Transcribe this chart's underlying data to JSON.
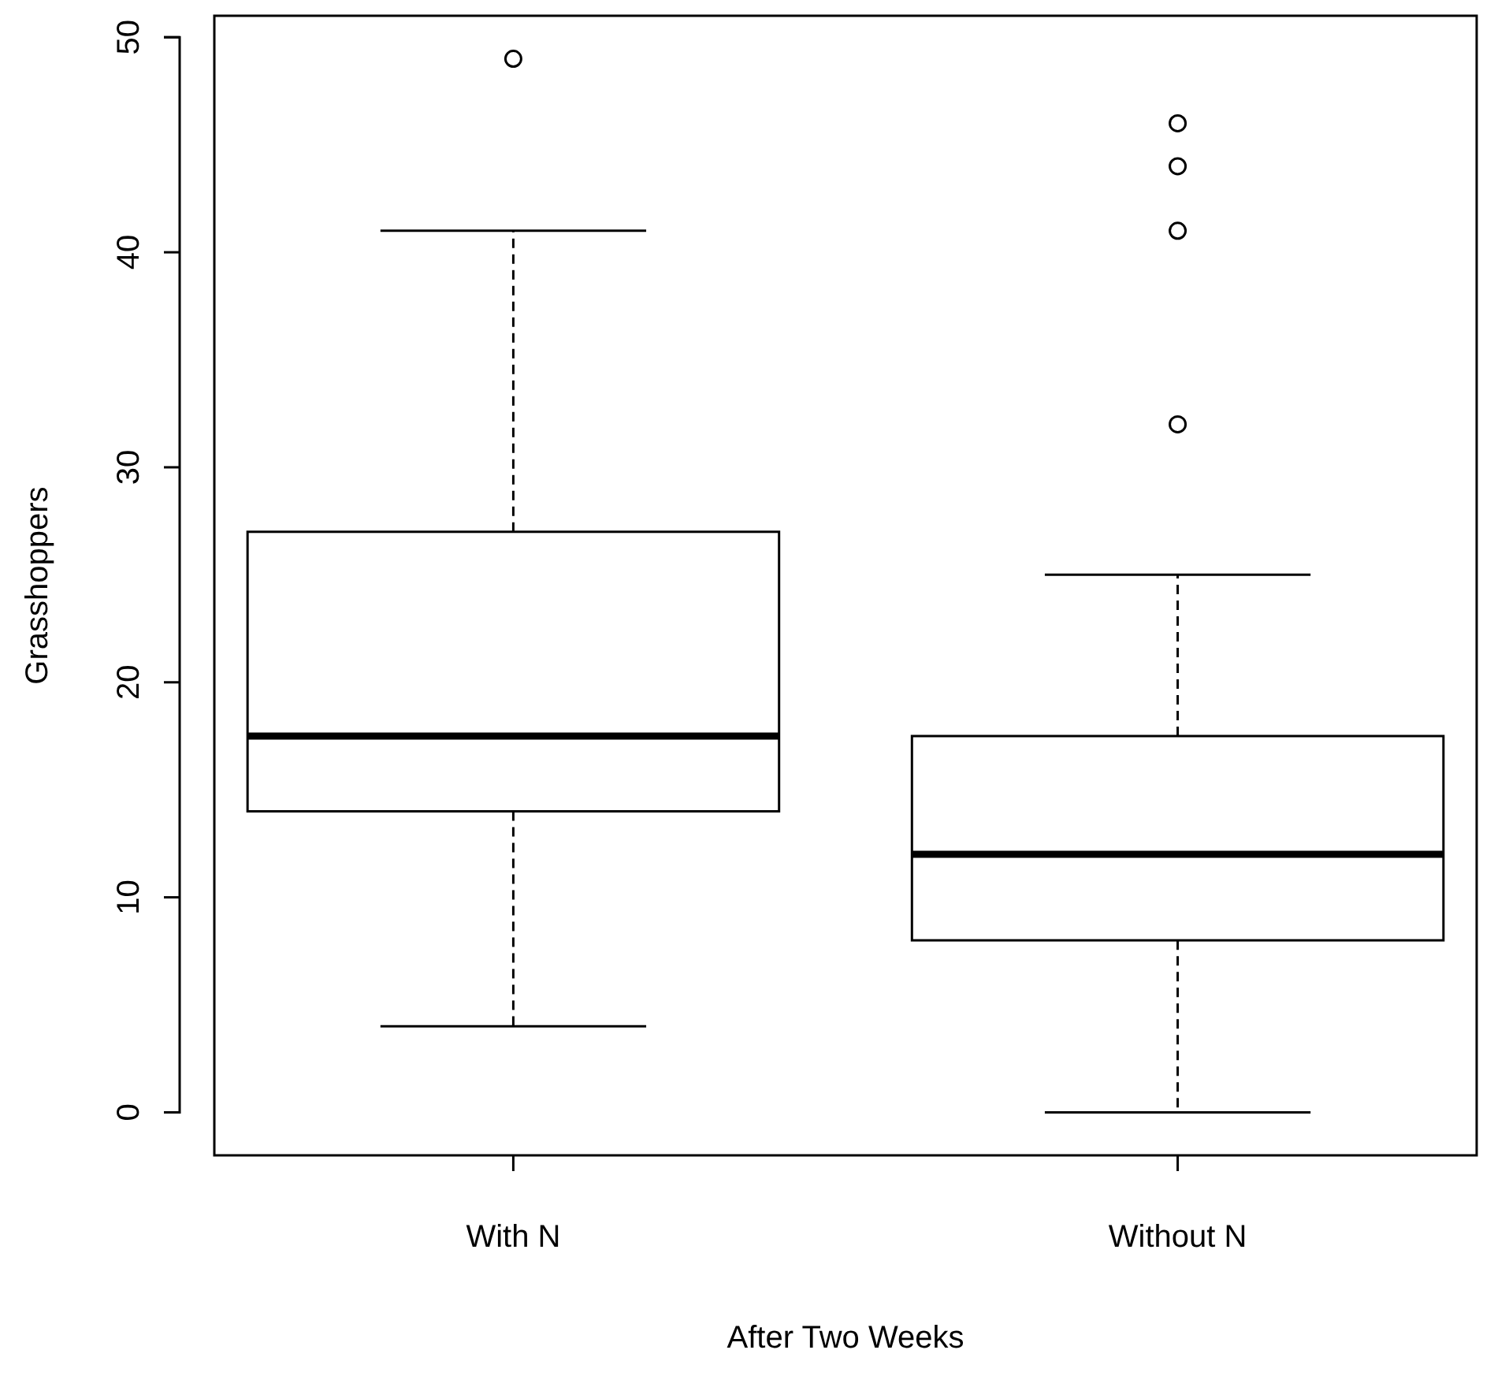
{
  "chart_data": {
    "type": "box",
    "xlabel": "After Two Weeks",
    "ylabel": "Grasshoppers",
    "categories": [
      "With N",
      "Without N"
    ],
    "boxes": [
      {
        "low": 4,
        "q1": 14,
        "median": 17.5,
        "q3": 27,
        "high": 41,
        "outliers": [
          49
        ]
      },
      {
        "low": 0,
        "q1": 8,
        "median": 12,
        "q3": 17.5,
        "high": 25,
        "outliers": [
          32,
          41,
          44,
          46
        ]
      }
    ],
    "ylim": [
      -2,
      51
    ],
    "yticks": [
      0,
      10,
      20,
      30,
      40,
      50
    ],
    "grid": false
  }
}
